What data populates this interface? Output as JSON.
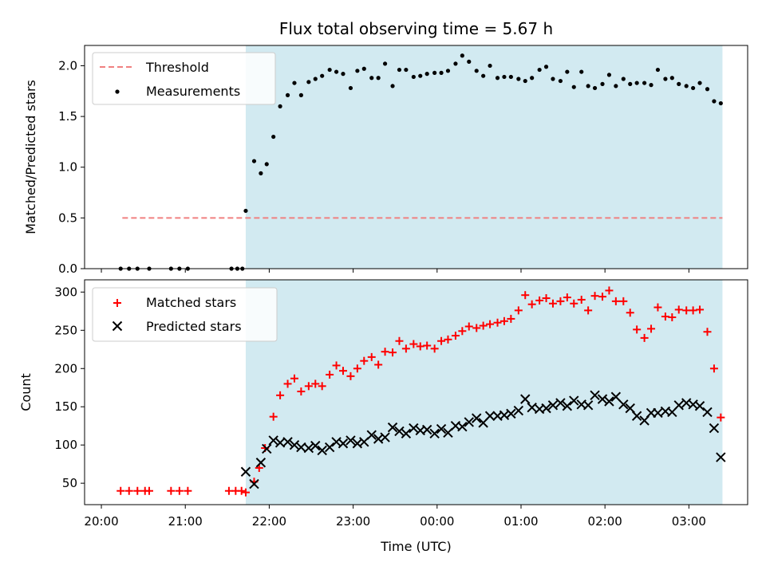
{
  "chart_data": [
    {
      "type": "scatter",
      "title": "Flux total observing time = 5.67 h",
      "xlabel": "",
      "ylabel": "Matched/Predicted stars",
      "xlim_hours": [
        19.8,
        27.7
      ],
      "ylim": [
        0,
        2.2
      ],
      "yticks": [
        0.0,
        0.5,
        1.0,
        1.5,
        2.0
      ],
      "ytick_labels": [
        "0.0",
        "0.5",
        "1.0",
        "1.5",
        "2.0"
      ],
      "shaded_span_hours": [
        21.72,
        27.4
      ],
      "shade_color": "#add8e6",
      "legend": {
        "location": "upper-left",
        "entries": [
          "Threshold",
          "Measurements"
        ]
      },
      "threshold": {
        "name": "Threshold",
        "value": 0.5,
        "x_start": 20.25,
        "x_end": 27.4,
        "color": "#f08080",
        "style": "dashed"
      },
      "series": [
        {
          "name": "Measurements",
          "color": "#000000",
          "marker": "dot",
          "x": [
            20.23,
            20.33,
            20.43,
            20.57,
            20.83,
            20.93,
            21.03,
            21.55,
            21.62,
            21.68,
            21.72,
            21.82,
            21.9,
            21.97,
            22.05,
            22.13,
            22.22,
            22.3,
            22.38,
            22.47,
            22.55,
            22.63,
            22.72,
            22.8,
            22.88,
            22.97,
            23.05,
            23.13,
            23.22,
            23.3,
            23.38,
            23.47,
            23.55,
            23.63,
            23.72,
            23.8,
            23.88,
            23.97,
            24.05,
            24.13,
            24.22,
            24.3,
            24.38,
            24.47,
            24.55,
            24.63,
            24.72,
            24.8,
            24.88,
            24.97,
            25.05,
            25.13,
            25.22,
            25.3,
            25.38,
            25.47,
            25.55,
            25.63,
            25.72,
            25.8,
            25.88,
            25.97,
            26.05,
            26.13,
            26.22,
            26.3,
            26.38,
            26.47,
            26.55,
            26.63,
            26.72,
            26.8,
            26.88,
            26.97,
            27.05,
            27.13,
            27.22,
            27.3,
            27.38
          ],
          "y": [
            0,
            0,
            0,
            0,
            0,
            0,
            0,
            0,
            0,
            0,
            0.57,
            1.06,
            0.94,
            1.03,
            1.3,
            1.6,
            1.71,
            1.83,
            1.71,
            1.84,
            1.87,
            1.9,
            1.96,
            1.94,
            1.92,
            1.78,
            1.95,
            1.97,
            1.88,
            1.88,
            2.02,
            1.8,
            1.96,
            1.96,
            1.89,
            1.9,
            1.92,
            1.93,
            1.93,
            1.95,
            2.02,
            2.1,
            2.04,
            1.95,
            1.9,
            2.0,
            1.88,
            1.89,
            1.89,
            1.87,
            1.85,
            1.88,
            1.96,
            1.99,
            1.87,
            1.85,
            1.94,
            1.79,
            1.94,
            1.8,
            1.78,
            1.82,
            1.91,
            1.8,
            1.87,
            1.82,
            1.83,
            1.83,
            1.81,
            1.96,
            1.87,
            1.88,
            1.82,
            1.8,
            1.78,
            1.83,
            1.77,
            1.65,
            1.63
          ]
        }
      ]
    },
    {
      "type": "scatter",
      "title": "",
      "xlabel": "Time (UTC)",
      "ylabel": "Count",
      "xlim_hours": [
        19.8,
        27.7
      ],
      "ylim": [
        22,
        316
      ],
      "yticks": [
        50,
        100,
        150,
        200,
        250,
        300
      ],
      "ytick_labels": [
        "50",
        "100",
        "150",
        "200",
        "250",
        "300"
      ],
      "xticks_hours": [
        20,
        21,
        22,
        23,
        24,
        25,
        26,
        27
      ],
      "xtick_labels": [
        "20:00",
        "21:00",
        "22:00",
        "23:00",
        "00:00",
        "01:00",
        "02:00",
        "03:00"
      ],
      "shaded_span_hours": [
        21.72,
        27.4
      ],
      "shade_color": "#add8e6",
      "legend": {
        "location": "upper-left",
        "entries": [
          "Matched stars",
          "Predicted stars"
        ]
      },
      "series": [
        {
          "name": "Matched stars",
          "color": "#ff0000",
          "marker": "plus",
          "x": [
            20.23,
            20.33,
            20.43,
            20.52,
            20.57,
            20.83,
            20.93,
            21.03,
            21.52,
            21.6,
            21.67,
            21.72,
            21.82,
            21.88,
            21.95,
            22.05,
            22.13,
            22.22,
            22.3,
            22.38,
            22.47,
            22.55,
            22.63,
            22.72,
            22.8,
            22.88,
            22.97,
            23.05,
            23.13,
            23.22,
            23.3,
            23.38,
            23.47,
            23.55,
            23.63,
            23.72,
            23.8,
            23.88,
            23.97,
            24.05,
            24.13,
            24.22,
            24.3,
            24.38,
            24.47,
            24.55,
            24.63,
            24.72,
            24.8,
            24.88,
            24.97,
            25.05,
            25.13,
            25.22,
            25.3,
            25.38,
            25.47,
            25.55,
            25.63,
            25.72,
            25.8,
            25.88,
            25.97,
            26.05,
            26.13,
            26.22,
            26.3,
            26.38,
            26.47,
            26.55,
            26.63,
            26.72,
            26.8,
            26.88,
            26.97,
            27.05,
            27.13,
            27.22,
            27.3,
            27.38
          ],
          "y": [
            40,
            40,
            40,
            40,
            40,
            40,
            40,
            40,
            40,
            40,
            40,
            38,
            52,
            70,
            96,
            137,
            165,
            180,
            187,
            170,
            177,
            180,
            177,
            192,
            204,
            197,
            190,
            200,
            210,
            215,
            205,
            222,
            221,
            236,
            226,
            232,
            229,
            230,
            226,
            236,
            238,
            243,
            249,
            255,
            253,
            256,
            258,
            260,
            262,
            265,
            276,
            296,
            284,
            289,
            292,
            285,
            288,
            293,
            285,
            290,
            276,
            295,
            294,
            302,
            288,
            288,
            273,
            251,
            240,
            252,
            280,
            268,
            267,
            277,
            276,
            276,
            277,
            248,
            200,
            136
          ]
        },
        {
          "name": "Predicted stars",
          "color": "#000000",
          "marker": "x",
          "x": [
            21.72,
            21.82,
            21.9,
            21.97,
            22.05,
            22.13,
            22.22,
            22.3,
            22.38,
            22.47,
            22.55,
            22.63,
            22.72,
            22.8,
            22.88,
            22.97,
            23.05,
            23.13,
            23.22,
            23.3,
            23.38,
            23.47,
            23.55,
            23.63,
            23.72,
            23.8,
            23.88,
            23.97,
            24.05,
            24.13,
            24.22,
            24.3,
            24.38,
            24.47,
            24.55,
            24.63,
            24.72,
            24.8,
            24.88,
            24.97,
            25.05,
            25.13,
            25.22,
            25.3,
            25.38,
            25.47,
            25.55,
            25.63,
            25.72,
            25.8,
            25.88,
            25.97,
            26.05,
            26.13,
            26.22,
            26.3,
            26.38,
            26.47,
            26.55,
            26.63,
            26.72,
            26.8,
            26.88,
            26.97,
            27.05,
            27.13,
            27.22,
            27.3,
            27.38
          ],
          "y": [
            65,
            49,
            77,
            95,
            106,
            103,
            104,
            100,
            97,
            96,
            99,
            93,
            97,
            104,
            102,
            106,
            102,
            104,
            113,
            108,
            110,
            123,
            118,
            115,
            122,
            119,
            120,
            115,
            121,
            116,
            125,
            124,
            130,
            135,
            129,
            138,
            138,
            139,
            141,
            145,
            160,
            149,
            147,
            148,
            152,
            155,
            151,
            158,
            153,
            152,
            165,
            160,
            157,
            163,
            153,
            148,
            138,
            132,
            142,
            142,
            144,
            143,
            152,
            155,
            153,
            151,
            143,
            122,
            84
          ]
        }
      ]
    }
  ]
}
